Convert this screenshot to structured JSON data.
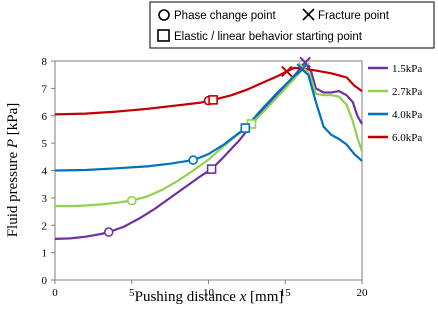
{
  "chart_data": {
    "type": "line",
    "xlabel": "Pushing distance x [mm]",
    "xlabel_parts": [
      "Pushing distance ",
      "x",
      " [mm]"
    ],
    "ylabel": "Fluid pressure P [kPa]",
    "ylabel_parts": [
      "Fluid pressure ",
      "P",
      " [kPa]"
    ],
    "xlim": [
      0,
      20
    ],
    "ylim": [
      0,
      8
    ],
    "xticks": [
      0,
      5,
      10,
      15,
      20
    ],
    "yticks": [
      0,
      1,
      2,
      3,
      4,
      5,
      6,
      7,
      8
    ],
    "grid": false,
    "legend_position": "right",
    "marker_legend": {
      "phase_change": "Phase change point",
      "fracture": "Fracture point",
      "elastic_start": "Elastic / linear behavior starting point"
    },
    "series": [
      {
        "name": "1.5kPa",
        "color": "#7030a0",
        "points": [
          [
            0,
            1.5
          ],
          [
            1,
            1.52
          ],
          [
            2,
            1.58
          ],
          [
            3,
            1.68
          ],
          [
            3.5,
            1.75
          ],
          [
            4.5,
            1.95
          ],
          [
            5.5,
            2.25
          ],
          [
            6.5,
            2.6
          ],
          [
            7.5,
            3.0
          ],
          [
            8.5,
            3.4
          ],
          [
            9.5,
            3.8
          ],
          [
            10.2,
            4.05
          ],
          [
            11,
            4.5
          ],
          [
            12,
            5.1
          ],
          [
            13,
            5.8
          ],
          [
            14,
            6.5
          ],
          [
            15,
            7.1
          ],
          [
            15.8,
            7.6
          ],
          [
            16.3,
            7.95
          ],
          [
            16.7,
            7.6
          ],
          [
            17,
            7.0
          ],
          [
            17.5,
            6.85
          ],
          [
            18,
            6.85
          ],
          [
            18.5,
            6.9
          ],
          [
            19,
            6.75
          ],
          [
            19.4,
            6.5
          ],
          [
            19.7,
            6.0
          ],
          [
            20,
            5.7
          ]
        ],
        "phase_change": [
          3.5,
          1.75
        ],
        "elastic_start": [
          10.2,
          4.05
        ],
        "fracture": [
          16.3,
          7.95
        ]
      },
      {
        "name": "2.7kPa",
        "color": "#92d050",
        "points": [
          [
            0,
            2.7
          ],
          [
            1,
            2.7
          ],
          [
            2,
            2.72
          ],
          [
            3,
            2.76
          ],
          [
            4,
            2.82
          ],
          [
            5,
            2.9
          ],
          [
            6,
            3.05
          ],
          [
            7,
            3.3
          ],
          [
            8,
            3.62
          ],
          [
            9,
            4.0
          ],
          [
            10,
            4.4
          ],
          [
            11,
            4.9
          ],
          [
            12,
            5.35
          ],
          [
            12.8,
            5.7
          ],
          [
            13.5,
            6.1
          ],
          [
            14.5,
            6.7
          ],
          [
            15.5,
            7.3
          ],
          [
            16.2,
            7.75
          ],
          [
            16.6,
            7.5
          ],
          [
            17,
            6.8
          ],
          [
            17.5,
            6.75
          ],
          [
            18,
            6.75
          ],
          [
            18.5,
            6.7
          ],
          [
            19,
            6.4
          ],
          [
            19.4,
            5.8
          ],
          [
            19.7,
            5.2
          ],
          [
            20,
            4.7
          ]
        ],
        "phase_change": [
          5.0,
          2.9
        ],
        "elastic_start": [
          12.8,
          5.7
        ],
        "fracture": [
          16.2,
          7.75
        ]
      },
      {
        "name": "4.0kPa",
        "color": "#0070c0",
        "points": [
          [
            0,
            4.0
          ],
          [
            2,
            4.02
          ],
          [
            4,
            4.08
          ],
          [
            6,
            4.15
          ],
          [
            7.5,
            4.25
          ],
          [
            9,
            4.38
          ],
          [
            10,
            4.6
          ],
          [
            11,
            4.95
          ],
          [
            12.4,
            5.55
          ],
          [
            13.5,
            6.25
          ],
          [
            14.5,
            6.85
          ],
          [
            15.5,
            7.4
          ],
          [
            16.1,
            7.7
          ],
          [
            16.5,
            7.5
          ],
          [
            17,
            6.5
          ],
          [
            17.5,
            5.6
          ],
          [
            18,
            5.3
          ],
          [
            18.5,
            5.15
          ],
          [
            19,
            4.95
          ],
          [
            19.5,
            4.6
          ],
          [
            20,
            4.35
          ]
        ],
        "phase_change": [
          9.0,
          4.38
        ],
        "elastic_start": [
          12.4,
          5.55
        ],
        "fracture": [
          16.1,
          7.7
        ]
      },
      {
        "name": "6.0kPa",
        "color": "#c00000",
        "points": [
          [
            0,
            6.05
          ],
          [
            2,
            6.08
          ],
          [
            4,
            6.15
          ],
          [
            6,
            6.25
          ],
          [
            8,
            6.38
          ],
          [
            9.5,
            6.48
          ],
          [
            10.3,
            6.58
          ],
          [
            11.5,
            6.75
          ],
          [
            12.5,
            6.95
          ],
          [
            13.5,
            7.2
          ],
          [
            14.5,
            7.45
          ],
          [
            15.1,
            7.62
          ],
          [
            15.6,
            7.75
          ],
          [
            16.2,
            7.72
          ],
          [
            17,
            7.65
          ],
          [
            18,
            7.55
          ],
          [
            19,
            7.4
          ],
          [
            19.5,
            7.1
          ],
          [
            20,
            6.9
          ]
        ],
        "phase_change": [
          10.0,
          6.55
        ],
        "elastic_start": [
          10.3,
          6.58
        ],
        "fracture": [
          15.1,
          7.62
        ]
      }
    ]
  }
}
